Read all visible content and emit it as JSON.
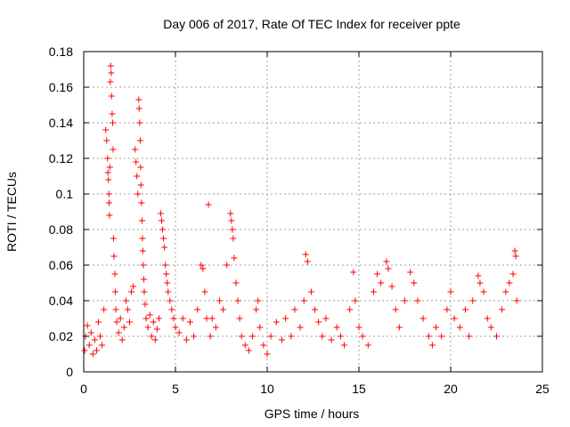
{
  "chart_data": {
    "type": "scatter",
    "title": "Day 006 of 2017, Rate Of TEC Index for receiver ppte",
    "xlabel": "GPS time / hours",
    "ylabel": "ROTI / TECUs",
    "xlim": [
      0,
      25
    ],
    "ylim": [
      0,
      0.18
    ],
    "x_ticks": [
      "0",
      "5",
      "10",
      "15",
      "20",
      "25"
    ],
    "y_ticks": [
      "0",
      "0.02",
      "0.04",
      "0.06",
      "0.08",
      "0.1",
      "0.12",
      "0.14",
      "0.16",
      "0.18"
    ],
    "grid": true,
    "marker": "+",
    "color": "#ff0000",
    "series": [
      {
        "points": [
          [
            0.05,
            0.012
          ],
          [
            0.1,
            0.02
          ],
          [
            0.2,
            0.026
          ],
          [
            0.3,
            0.015
          ],
          [
            0.4,
            0.022
          ],
          [
            0.5,
            0.01
          ],
          [
            0.6,
            0.018
          ],
          [
            0.7,
            0.012
          ],
          [
            0.8,
            0.028
          ],
          [
            0.9,
            0.02
          ],
          [
            1.0,
            0.015
          ],
          [
            1.1,
            0.035
          ],
          [
            1.2,
            0.136
          ],
          [
            1.25,
            0.13
          ],
          [
            1.3,
            0.12
          ],
          [
            1.32,
            0.112
          ],
          [
            1.35,
            0.108
          ],
          [
            1.37,
            0.1
          ],
          [
            1.38,
            0.095
          ],
          [
            1.4,
            0.088
          ],
          [
            1.42,
            0.115
          ],
          [
            1.45,
            0.163
          ],
          [
            1.47,
            0.172
          ],
          [
            1.5,
            0.168
          ],
          [
            1.52,
            0.155
          ],
          [
            1.55,
            0.145
          ],
          [
            1.58,
            0.14
          ],
          [
            1.6,
            0.125
          ],
          [
            1.62,
            0.075
          ],
          [
            1.65,
            0.065
          ],
          [
            1.7,
            0.055
          ],
          [
            1.72,
            0.045
          ],
          [
            1.75,
            0.035
          ],
          [
            1.8,
            0.028
          ],
          [
            1.9,
            0.022
          ],
          [
            2.0,
            0.03
          ],
          [
            2.1,
            0.018
          ],
          [
            2.2,
            0.025
          ],
          [
            2.3,
            0.04
          ],
          [
            2.4,
            0.035
          ],
          [
            2.5,
            0.028
          ],
          [
            2.6,
            0.045
          ],
          [
            2.7,
            0.048
          ],
          [
            2.8,
            0.125
          ],
          [
            2.85,
            0.118
          ],
          [
            2.9,
            0.11
          ],
          [
            2.95,
            0.1
          ],
          [
            3.0,
            0.153
          ],
          [
            3.02,
            0.148
          ],
          [
            3.05,
            0.14
          ],
          [
            3.08,
            0.13
          ],
          [
            3.1,
            0.115
          ],
          [
            3.12,
            0.105
          ],
          [
            3.15,
            0.095
          ],
          [
            3.18,
            0.085
          ],
          [
            3.2,
            0.075
          ],
          [
            3.22,
            0.068
          ],
          [
            3.25,
            0.06
          ],
          [
            3.28,
            0.052
          ],
          [
            3.3,
            0.045
          ],
          [
            3.35,
            0.038
          ],
          [
            3.4,
            0.03
          ],
          [
            3.5,
            0.025
          ],
          [
            3.6,
            0.032
          ],
          [
            3.7,
            0.02
          ],
          [
            3.8,
            0.028
          ],
          [
            3.9,
            0.018
          ],
          [
            4.0,
            0.024
          ],
          [
            4.1,
            0.03
          ],
          [
            4.2,
            0.089
          ],
          [
            4.25,
            0.085
          ],
          [
            4.3,
            0.08
          ],
          [
            4.35,
            0.075
          ],
          [
            4.4,
            0.07
          ],
          [
            4.45,
            0.06
          ],
          [
            4.5,
            0.055
          ],
          [
            4.55,
            0.05
          ],
          [
            4.6,
            0.045
          ],
          [
            4.7,
            0.04
          ],
          [
            4.8,
            0.035
          ],
          [
            4.9,
            0.03
          ],
          [
            5.0,
            0.025
          ],
          [
            5.2,
            0.022
          ],
          [
            5.4,
            0.03
          ],
          [
            5.6,
            0.018
          ],
          [
            5.8,
            0.028
          ],
          [
            6.0,
            0.02
          ],
          [
            6.2,
            0.035
          ],
          [
            6.4,
            0.06
          ],
          [
            6.5,
            0.058
          ],
          [
            6.6,
            0.045
          ],
          [
            6.7,
            0.03
          ],
          [
            6.8,
            0.094
          ],
          [
            6.9,
            0.02
          ],
          [
            7.0,
            0.03
          ],
          [
            7.2,
            0.025
          ],
          [
            7.4,
            0.04
          ],
          [
            7.6,
            0.035
          ],
          [
            7.8,
            0.06
          ],
          [
            8.0,
            0.089
          ],
          [
            8.05,
            0.085
          ],
          [
            8.1,
            0.08
          ],
          [
            8.15,
            0.075
          ],
          [
            8.2,
            0.064
          ],
          [
            8.3,
            0.05
          ],
          [
            8.4,
            0.04
          ],
          [
            8.5,
            0.03
          ],
          [
            8.6,
            0.02
          ],
          [
            8.8,
            0.015
          ],
          [
            9.0,
            0.012
          ],
          [
            9.2,
            0.02
          ],
          [
            9.4,
            0.035
          ],
          [
            9.5,
            0.04
          ],
          [
            9.6,
            0.025
          ],
          [
            9.8,
            0.015
          ],
          [
            10.0,
            0.01
          ],
          [
            10.2,
            0.02
          ],
          [
            10.5,
            0.028
          ],
          [
            10.8,
            0.018
          ],
          [
            11.0,
            0.03
          ],
          [
            11.3,
            0.02
          ],
          [
            11.5,
            0.035
          ],
          [
            11.8,
            0.025
          ],
          [
            12.0,
            0.04
          ],
          [
            12.1,
            0.066
          ],
          [
            12.2,
            0.062
          ],
          [
            12.4,
            0.045
          ],
          [
            12.6,
            0.035
          ],
          [
            12.8,
            0.028
          ],
          [
            13.0,
            0.02
          ],
          [
            13.2,
            0.03
          ],
          [
            13.5,
            0.018
          ],
          [
            13.8,
            0.025
          ],
          [
            14.0,
            0.02
          ],
          [
            14.2,
            0.015
          ],
          [
            14.5,
            0.035
          ],
          [
            14.7,
            0.056
          ],
          [
            14.8,
            0.04
          ],
          [
            15.0,
            0.025
          ],
          [
            15.2,
            0.02
          ],
          [
            15.5,
            0.015
          ],
          [
            15.8,
            0.045
          ],
          [
            16.0,
            0.055
          ],
          [
            16.2,
            0.05
          ],
          [
            16.5,
            0.062
          ],
          [
            16.6,
            0.058
          ],
          [
            16.8,
            0.048
          ],
          [
            17.0,
            0.035
          ],
          [
            17.2,
            0.025
          ],
          [
            17.5,
            0.04
          ],
          [
            17.8,
            0.056
          ],
          [
            18.0,
            0.05
          ],
          [
            18.2,
            0.04
          ],
          [
            18.5,
            0.03
          ],
          [
            18.8,
            0.02
          ],
          [
            19.0,
            0.015
          ],
          [
            19.2,
            0.025
          ],
          [
            19.5,
            0.02
          ],
          [
            19.8,
            0.035
          ],
          [
            20.0,
            0.045
          ],
          [
            20.2,
            0.03
          ],
          [
            20.5,
            0.025
          ],
          [
            20.8,
            0.035
          ],
          [
            21.0,
            0.02
          ],
          [
            21.2,
            0.04
          ],
          [
            21.5,
            0.054
          ],
          [
            21.6,
            0.05
          ],
          [
            21.8,
            0.045
          ],
          [
            22.0,
            0.03
          ],
          [
            22.2,
            0.025
          ],
          [
            22.5,
            0.02
          ],
          [
            22.8,
            0.035
          ],
          [
            23.0,
            0.045
          ],
          [
            23.2,
            0.05
          ],
          [
            23.4,
            0.055
          ],
          [
            23.5,
            0.068
          ],
          [
            23.55,
            0.065
          ],
          [
            23.6,
            0.04
          ]
        ]
      }
    ]
  }
}
